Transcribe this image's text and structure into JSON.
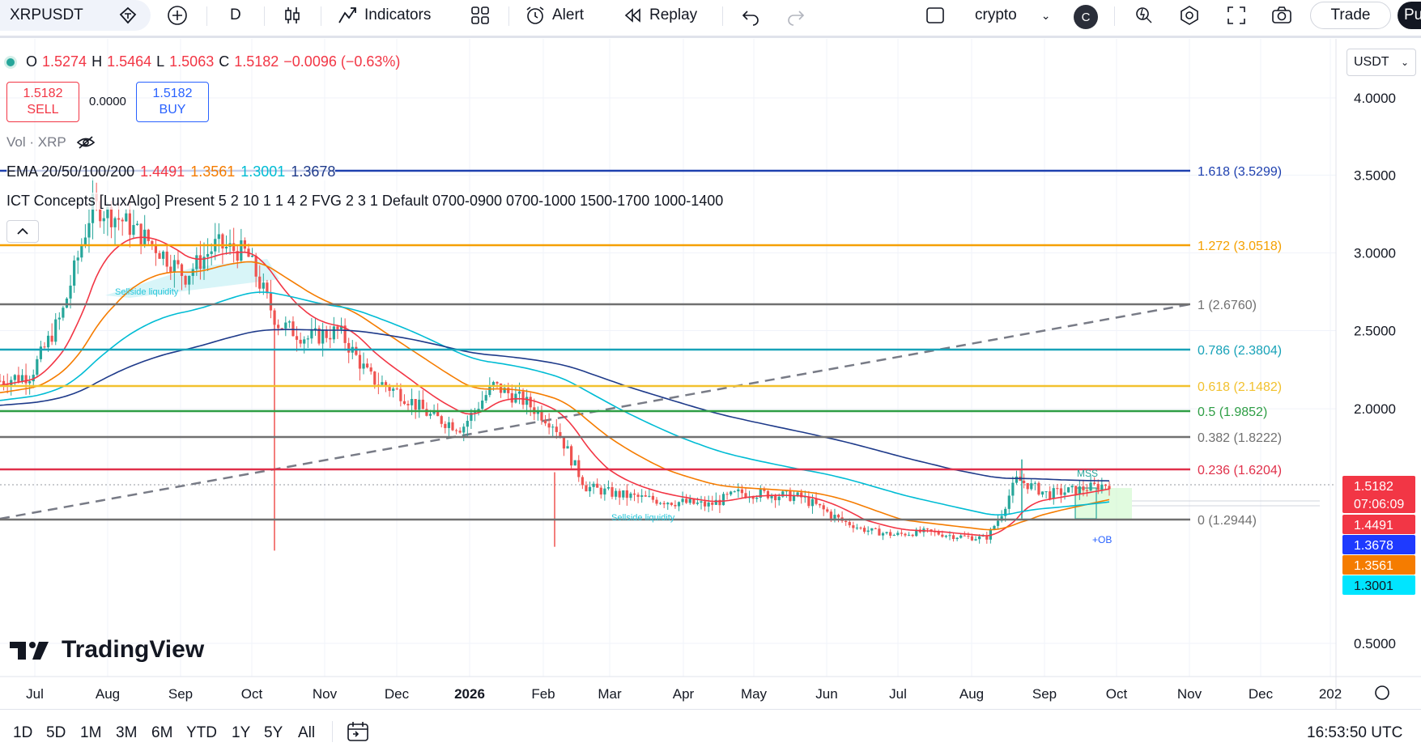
{
  "toolbar": {
    "symbol": "XRPUSDT",
    "interval": "D",
    "indicators_label": "Indicators",
    "alert_label": "Alert",
    "replay_label": "Replay",
    "layout_name": "crypto",
    "layout_avatar": "C",
    "trade_label": "Trade",
    "publish_label": "Pu"
  },
  "legend": {
    "open_label": "O",
    "open": "1.5274",
    "high_label": "H",
    "high": "1.5464",
    "low_label": "L",
    "low": "1.5063",
    "close_label": "C",
    "close": "1.5182",
    "change": "−0.0096 (−0.63%)",
    "sell_price": "1.5182",
    "sell_label": "SELL",
    "spread": "0.0000",
    "buy_price": "1.5182",
    "buy_label": "BUY",
    "volume": "Vol · XRP",
    "ema_name": "EMA 20/50/100/200",
    "ema20": "1.4491",
    "ema50": "1.3561",
    "ema100": "1.3001",
    "ema200": "1.3678",
    "ict": "ICT Concepts [LuxAlgo] Present 5 2 10 1 1 4 2 FVG 2 3 1 Default 0700-0900 0700-1000 1500-1700 1000-1400"
  },
  "currency": "USDT",
  "branding": "TradingView",
  "colors": {
    "up": "#26a69a",
    "down": "#ef5350",
    "ema20": "#f23645",
    "ema50": "#f57c00",
    "ema100": "#00bcd4",
    "ema200": "#1e3a8a"
  },
  "chart_data": {
    "type": "candlestick",
    "symbol": "XRPUSDT",
    "interval": "1D",
    "price_scale": "log",
    "y_ticks": [
      "4.0000",
      "3.5000",
      "3.0000",
      "2.5000",
      "2.0000",
      "0.5000"
    ],
    "x_ticks": [
      "Jul",
      "Aug",
      "Sep",
      "Oct",
      "Nov",
      "Dec",
      "2026",
      "Feb",
      "Mar",
      "Apr",
      "May",
      "Jun",
      "Jul",
      "Aug",
      "Sep",
      "Oct",
      "Nov",
      "Dec",
      "202"
    ],
    "close_series": [
      {
        "date": "Jun",
        "close": 2.18
      },
      {
        "date": "Jul",
        "close": 2.22
      },
      {
        "date": "Jul",
        "close": 2.6
      },
      {
        "date": "Jul",
        "close": 3.3
      },
      {
        "date": "Aug",
        "close": 3.2
      },
      {
        "date": "Aug",
        "close": 3.05
      },
      {
        "date": "Sep",
        "close": 2.85
      },
      {
        "date": "Sep",
        "close": 3.05
      },
      {
        "date": "Oct",
        "close": 3.0
      },
      {
        "date": "Oct",
        "close": 2.55
      },
      {
        "date": "Oct",
        "close": 2.45
      },
      {
        "date": "Nov",
        "close": 2.5
      },
      {
        "date": "Nov",
        "close": 2.2
      },
      {
        "date": "Dec",
        "close": 2.1
      },
      {
        "date": "Dec",
        "close": 1.95
      },
      {
        "date": "Dec",
        "close": 1.88
      },
      {
        "date": "2026",
        "close": 2.15
      },
      {
        "date": "Jan",
        "close": 2.05
      },
      {
        "date": "Jan",
        "close": 1.9
      },
      {
        "date": "Feb",
        "close": 1.5
      },
      {
        "date": "Feb",
        "close": 1.45
      },
      {
        "date": "Mar",
        "close": 1.42
      },
      {
        "date": "Mar",
        "close": 1.4
      },
      {
        "date": "Apr",
        "close": 1.38
      },
      {
        "date": "Apr",
        "close": 1.46
      },
      {
        "date": "May",
        "close": 1.45
      },
      {
        "date": "May",
        "close": 1.43
      },
      {
        "date": "Jun",
        "close": 1.32
      },
      {
        "date": "Jun",
        "close": 1.2
      },
      {
        "date": "Jul",
        "close": 1.15
      },
      {
        "date": "Jul",
        "close": 1.18
      },
      {
        "date": "Aug",
        "close": 1.14
      },
      {
        "date": "Aug",
        "close": 1.12
      },
      {
        "date": "Aug",
        "close": 1.55
      },
      {
        "date": "Sep",
        "close": 1.45
      },
      {
        "date": "Sep",
        "close": 1.48
      },
      {
        "date": "Sep",
        "close": 1.52
      }
    ],
    "last_price": "1.5182",
    "countdown": "07:06:09",
    "ema_last": [
      {
        "name": "EMA20",
        "value": "1.4491",
        "color": "#f23645"
      },
      {
        "name": "EMA200",
        "value": "1.3678",
        "color": "#1e3a8a"
      },
      {
        "name": "EMA50",
        "value": "1.3561",
        "color": "#f57c00"
      },
      {
        "name": "EMA100",
        "value": "1.3001",
        "color": "#00bcd4"
      }
    ],
    "fib_levels": [
      {
        "label": "1.618 (3.5299)",
        "value": 3.5299,
        "color": "#1e40af"
      },
      {
        "label": "1.272 (3.0518)",
        "value": 3.0518,
        "color": "#f5a000"
      },
      {
        "label": "1 (2.6760)",
        "value": 2.676,
        "color": "#707070"
      },
      {
        "label": "0.786 (2.3804)",
        "value": 2.3804,
        "color": "#17a2b8"
      },
      {
        "label": "0.618 (2.1482)",
        "value": 2.1482,
        "color": "#f2c12e"
      },
      {
        "label": "0.5 (1.9852)",
        "value": 1.9852,
        "color": "#2e9e44"
      },
      {
        "label": "0.382 (1.8222)",
        "value": 1.8222,
        "color": "#707070"
      },
      {
        "label": "0.236 (1.6204)",
        "value": 1.6204,
        "color": "#e0304a"
      },
      {
        "label": "0 (1.2944)",
        "value": 1.2944,
        "color": "#707070"
      }
    ],
    "annotations": [
      "Sellside liquidity",
      "Sellside liquidity",
      "MSS",
      "+OB"
    ]
  },
  "bottom": {
    "ranges": [
      "1D",
      "5D",
      "1M",
      "3M",
      "6M",
      "YTD",
      "1Y",
      "5Y",
      "All"
    ],
    "clock": "16:53:50 UTC"
  }
}
